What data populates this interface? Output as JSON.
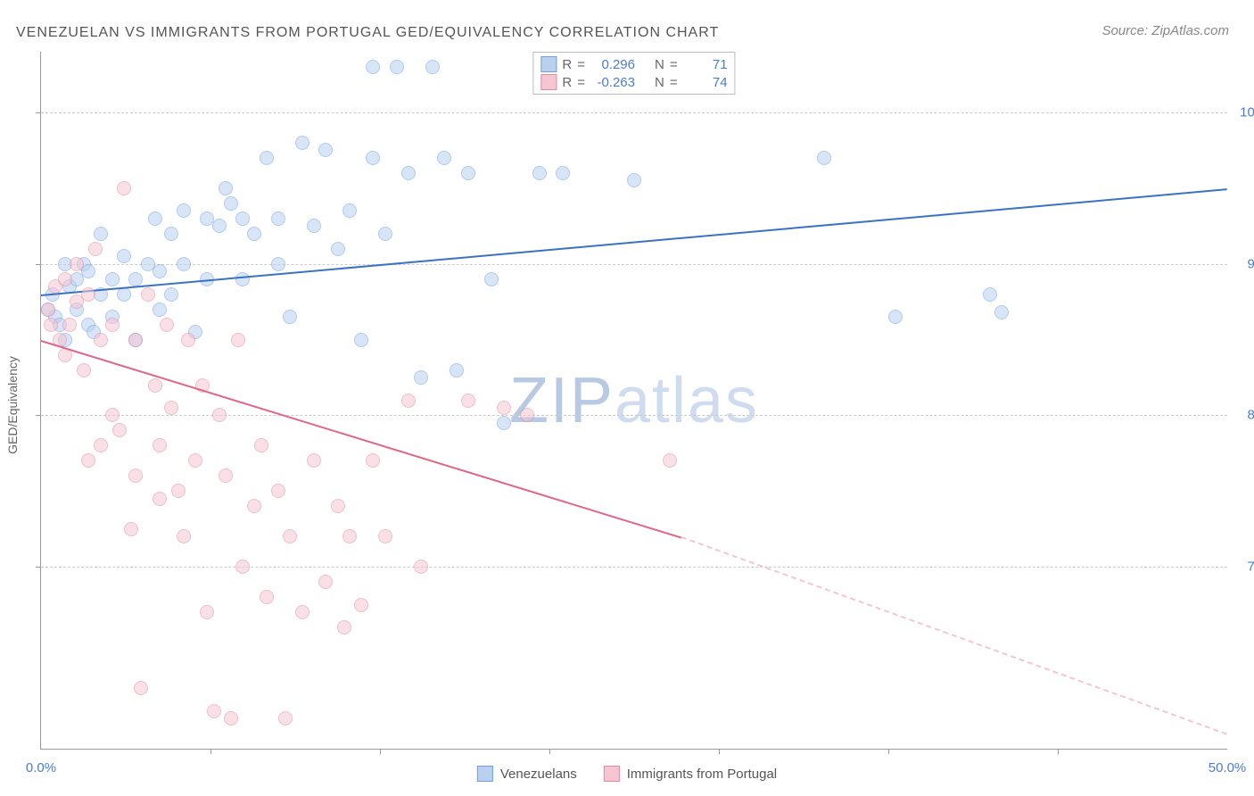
{
  "title": "VENEZUELAN VS IMMIGRANTS FROM PORTUGAL GED/EQUIVALENCY CORRELATION CHART",
  "source": "Source: ZipAtlas.com",
  "ylabel": "GED/Equivalency",
  "watermark": {
    "pre": "ZIP",
    "post": "atlas"
  },
  "chart": {
    "type": "scatter",
    "background_color": "#ffffff",
    "grid_color": "#cccccc",
    "axis_color": "#999999",
    "xlim": [
      0,
      50
    ],
    "ylim": [
      58,
      104
    ],
    "xticks": [
      {
        "pos": 0,
        "label": "0.0%"
      },
      {
        "pos": 50,
        "label": "50.0%"
      }
    ],
    "xticks_minor": [
      7.14,
      14.28,
      21.42,
      28.56,
      35.7,
      42.84
    ],
    "yticks": [
      {
        "pos": 70,
        "label": "70.0%"
      },
      {
        "pos": 80,
        "label": "80.0%"
      },
      {
        "pos": 90,
        "label": "90.0%"
      },
      {
        "pos": 100,
        "label": "100.0%"
      }
    ],
    "point_radius": 8,
    "point_opacity": 0.55,
    "series": [
      {
        "name": "Venezuelans",
        "color": "#6fa1e2",
        "fill": "#b9d1ef",
        "line_color": "#3b72c4",
        "R": "0.296",
        "N": "71",
        "trend": {
          "x1": 0,
          "y1": 88,
          "x2": 50,
          "y2": 95,
          "dash_from": 50
        },
        "points": [
          [
            0.3,
            87
          ],
          [
            0.5,
            88
          ],
          [
            0.6,
            86.5
          ],
          [
            0.8,
            86
          ],
          [
            1,
            90
          ],
          [
            1,
            85
          ],
          [
            1.2,
            88.5
          ],
          [
            1.5,
            89
          ],
          [
            1.5,
            87
          ],
          [
            1.8,
            90
          ],
          [
            2,
            89.5
          ],
          [
            2,
            86
          ],
          [
            2.2,
            85.5
          ],
          [
            2.5,
            88
          ],
          [
            2.5,
            92
          ],
          [
            3,
            89
          ],
          [
            3,
            86.5
          ],
          [
            3.5,
            90.5
          ],
          [
            3.5,
            88
          ],
          [
            4,
            89
          ],
          [
            4,
            85
          ],
          [
            4.5,
            90
          ],
          [
            4.8,
            93
          ],
          [
            5,
            89.5
          ],
          [
            5,
            87
          ],
          [
            5.5,
            92
          ],
          [
            5.5,
            88
          ],
          [
            6,
            93.5
          ],
          [
            6,
            90
          ],
          [
            6.5,
            85.5
          ],
          [
            7,
            93
          ],
          [
            7,
            89
          ],
          [
            7.5,
            92.5
          ],
          [
            7.8,
            95
          ],
          [
            8,
            94
          ],
          [
            8.5,
            89
          ],
          [
            8.5,
            93
          ],
          [
            9,
            92
          ],
          [
            9.5,
            97
          ],
          [
            10,
            93
          ],
          [
            10,
            90
          ],
          [
            10.5,
            86.5
          ],
          [
            11,
            98
          ],
          [
            11.5,
            92.5
          ],
          [
            12,
            97.5
          ],
          [
            12.5,
            91
          ],
          [
            13,
            93.5
          ],
          [
            13.5,
            85
          ],
          [
            14,
            97
          ],
          [
            14,
            103
          ],
          [
            14.5,
            92
          ],
          [
            15,
            103
          ],
          [
            15.5,
            96
          ],
          [
            16,
            82.5
          ],
          [
            16.5,
            103
          ],
          [
            17,
            97
          ],
          [
            17.5,
            83
          ],
          [
            18,
            96
          ],
          [
            19,
            89
          ],
          [
            19.5,
            79.5
          ],
          [
            21,
            96
          ],
          [
            22,
            96
          ],
          [
            25,
            95.5
          ],
          [
            33,
            97
          ],
          [
            36,
            86.5
          ],
          [
            40,
            88
          ],
          [
            40.5,
            86.8
          ]
        ]
      },
      {
        "name": "Immigrants from Portugal",
        "color": "#e38ba3",
        "fill": "#f5c5d2",
        "line_color": "#e06788",
        "R": "-0.263",
        "N": "74",
        "trend": {
          "x1": 0,
          "y1": 85,
          "x2": 27,
          "y2": 72,
          "dash_from": 27,
          "dash_x2": 50,
          "dash_y2": 59
        },
        "points": [
          [
            0.3,
            87
          ],
          [
            0.4,
            86
          ],
          [
            0.6,
            88.5
          ],
          [
            0.8,
            85
          ],
          [
            1,
            89
          ],
          [
            1,
            84
          ],
          [
            1.2,
            86
          ],
          [
            1.5,
            90
          ],
          [
            1.5,
            87.5
          ],
          [
            1.8,
            83
          ],
          [
            2,
            88
          ],
          [
            2,
            77
          ],
          [
            2.3,
            91
          ],
          [
            2.5,
            85
          ],
          [
            2.5,
            78
          ],
          [
            3,
            86
          ],
          [
            3,
            80
          ],
          [
            3.3,
            79
          ],
          [
            3.5,
            95
          ],
          [
            3.8,
            72.5
          ],
          [
            4,
            85
          ],
          [
            4,
            76
          ],
          [
            4.2,
            62
          ],
          [
            4.5,
            88
          ],
          [
            4.8,
            82
          ],
          [
            5,
            78
          ],
          [
            5,
            74.5
          ],
          [
            5.3,
            86
          ],
          [
            5.5,
            80.5
          ],
          [
            5.8,
            75
          ],
          [
            6,
            72
          ],
          [
            6.2,
            85
          ],
          [
            6.5,
            77
          ],
          [
            6.8,
            82
          ],
          [
            7,
            67
          ],
          [
            7.3,
            60.5
          ],
          [
            7.5,
            80
          ],
          [
            7.8,
            76
          ],
          [
            8,
            60
          ],
          [
            8.3,
            85
          ],
          [
            8.5,
            70
          ],
          [
            9,
            74
          ],
          [
            9.3,
            78
          ],
          [
            9.5,
            68
          ],
          [
            10,
            75
          ],
          [
            10.3,
            60
          ],
          [
            10.5,
            72
          ],
          [
            11,
            67
          ],
          [
            11.5,
            77
          ],
          [
            12,
            69
          ],
          [
            12.5,
            74
          ],
          [
            12.8,
            66
          ],
          [
            13,
            72
          ],
          [
            13.5,
            67.5
          ],
          [
            14,
            77
          ],
          [
            14.5,
            72
          ],
          [
            15.5,
            81
          ],
          [
            16,
            70
          ],
          [
            18,
            81
          ],
          [
            19.5,
            80.5
          ],
          [
            20.5,
            80
          ],
          [
            26.5,
            77
          ]
        ]
      }
    ]
  },
  "legend_top": {
    "labels": {
      "R": "R",
      "N": "N",
      "eq": "="
    }
  },
  "legend_bottom": [
    "Venezuelans",
    "Immigrants from Portugal"
  ]
}
